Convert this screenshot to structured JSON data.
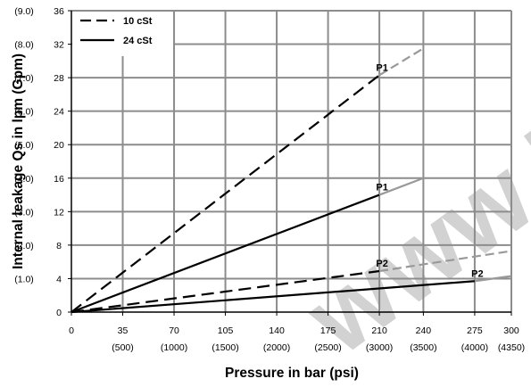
{
  "chart_data": {
    "type": "line",
    "title": "",
    "xlabel": "Pressure in bar (psi)",
    "ylabel": "Internal leakage Qs in lpm (Gpm)",
    "xlim": [
      0,
      300
    ],
    "ylim": [
      0,
      36
    ],
    "grid": true,
    "legend_position": "top-left",
    "x_ticks": [
      0,
      35,
      70,
      105,
      140,
      175,
      210,
      240,
      275,
      300
    ],
    "x_tick_labels": [
      "0",
      "35",
      "70",
      "105",
      "140",
      "175",
      "210",
      "240",
      "275",
      "300"
    ],
    "x_tick_sublabels": [
      "",
      "(500)",
      "(1000)",
      "(1500)",
      "(2000)",
      "(2500)",
      "(3000)",
      "(3500)",
      "(4000)",
      "(4350)"
    ],
    "y_ticks": [
      0,
      4,
      8,
      12,
      16,
      20,
      24,
      28,
      32,
      36
    ],
    "y_tick_labels": [
      "0",
      "4",
      "8",
      "12",
      "16",
      "20",
      "24",
      "28",
      "32",
      "36"
    ],
    "y_tick_sublabels": [
      "",
      "(1.0)",
      "(2.0)",
      "(3.0)",
      "(4.0)",
      "(5.0)",
      "(6.0)",
      "(7.0)",
      "(8.0)",
      "(9.0)"
    ],
    "series": [
      {
        "name": "10 cSt",
        "label": "P1",
        "style": "dashed",
        "x": [
          0,
          210
        ],
        "y": [
          0,
          28.3
        ],
        "ext_x": [
          210,
          240
        ],
        "ext_y": [
          28.3,
          31.5
        ]
      },
      {
        "name": "24 cSt",
        "label": "P1",
        "style": "solid",
        "x": [
          0,
          210
        ],
        "y": [
          0,
          14
        ],
        "ext_x": [
          210,
          240
        ],
        "ext_y": [
          14,
          16
        ]
      },
      {
        "name": "10 cSt",
        "label": "P2",
        "style": "dashed",
        "x": [
          0,
          210
        ],
        "y": [
          0,
          4.9
        ],
        "ext_x": [
          210,
          300
        ],
        "ext_y": [
          4.9,
          7.3
        ]
      },
      {
        "name": "24 cSt",
        "label": "P2",
        "style": "solid",
        "x": [
          0,
          275
        ],
        "y": [
          0,
          3.7
        ],
        "ext_x": [
          275,
          300
        ],
        "ext_y": [
          3.7,
          4.3
        ]
      }
    ],
    "legend": [
      {
        "label": "10 cSt",
        "style": "dashed"
      },
      {
        "label": "24 cSt",
        "style": "solid"
      }
    ],
    "watermark": "www.La",
    "colors": {
      "line": "#000000",
      "grid": "#8c8c8c",
      "extension": "#999999",
      "watermark": "#d2d2d2"
    }
  }
}
